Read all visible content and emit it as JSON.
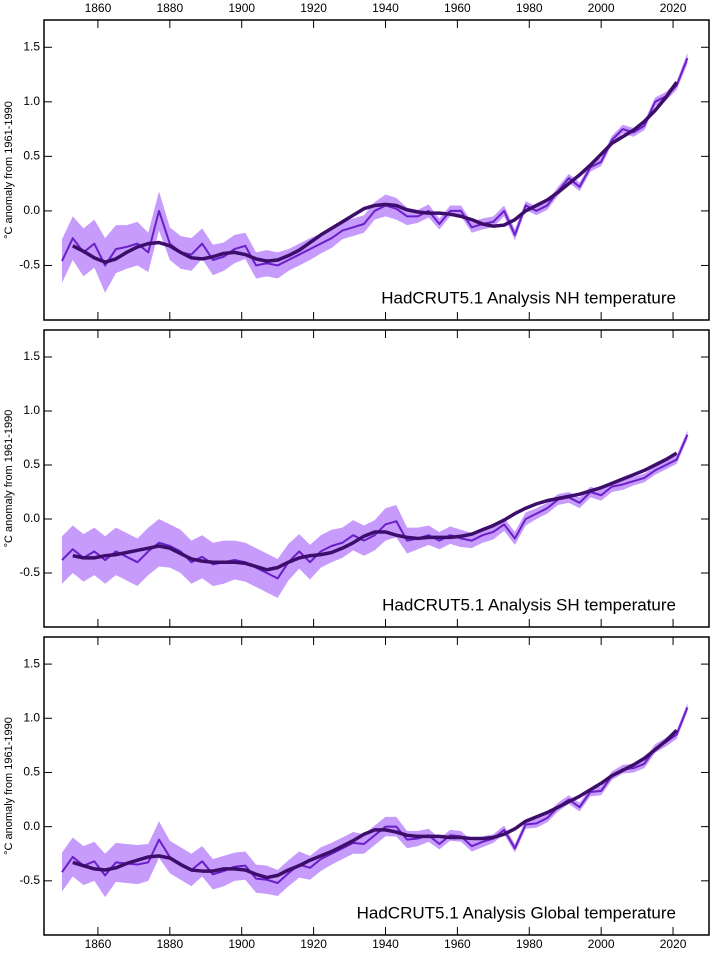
{
  "chart_data": [
    {
      "type": "line",
      "title": "HadCRUT5.1 Analysis NH temperature",
      "y_label": "°C anomaly from 1961-1990",
      "x": [
        1850,
        1853,
        1856,
        1859,
        1862,
        1865,
        1868,
        1871,
        1874,
        1877,
        1880,
        1883,
        1886,
        1889,
        1892,
        1895,
        1898,
        1901,
        1904,
        1907,
        1910,
        1913,
        1916,
        1919,
        1922,
        1925,
        1928,
        1931,
        1934,
        1937,
        1940,
        1943,
        1946,
        1949,
        1952,
        1955,
        1958,
        1961,
        1964,
        1967,
        1970,
        1973,
        1976,
        1979,
        1982,
        1985,
        1988,
        1991,
        1994,
        1997,
        2000,
        2003,
        2006,
        2009,
        2012,
        2015,
        2018,
        2021,
        2024
      ],
      "xlim": [
        1845,
        2030
      ],
      "xticks": [
        1860,
        1880,
        1900,
        1920,
        1940,
        1960,
        1980,
        2000,
        2020
      ],
      "ylim": [
        -1,
        1.75
      ],
      "yticks": [
        -0.5,
        {
          "value": 0,
          "label": "0.0"
        },
        0.5,
        {
          "value": 1,
          "label": "1.0"
        },
        1.5
      ],
      "series": [
        {
          "color": "#6a1fc9",
          "band_color": "#c79bfb",
          "values": [
            -0.46,
            -0.25,
            -0.38,
            -0.3,
            -0.5,
            -0.35,
            -0.33,
            -0.3,
            -0.38,
            0.0,
            -0.3,
            -0.38,
            -0.4,
            -0.3,
            -0.45,
            -0.42,
            -0.35,
            -0.32,
            -0.5,
            -0.48,
            -0.5,
            -0.45,
            -0.4,
            -0.35,
            -0.3,
            -0.25,
            -0.18,
            -0.15,
            -0.12,
            0.0,
            0.05,
            0.02,
            -0.05,
            -0.05,
            0.0,
            -0.12,
            0.0,
            0.0,
            -0.15,
            -0.12,
            -0.1,
            0.0,
            -0.22,
            0.05,
            0.0,
            0.05,
            0.18,
            0.3,
            0.22,
            0.4,
            0.45,
            0.65,
            0.75,
            0.72,
            0.78,
            1.0,
            1.05,
            1.15,
            1.4
          ],
          "errors": [
            0.2,
            0.2,
            0.22,
            0.22,
            0.25,
            0.22,
            0.2,
            0.2,
            0.18,
            0.18,
            0.15,
            0.15,
            0.15,
            0.14,
            0.14,
            0.13,
            0.13,
            0.12,
            0.12,
            0.12,
            0.12,
            0.1,
            0.1,
            0.1,
            0.09,
            0.09,
            0.08,
            0.08,
            0.08,
            0.08,
            0.1,
            0.1,
            0.08,
            0.06,
            0.06,
            0.05,
            0.05,
            0.05,
            0.05,
            0.05,
            0.05,
            0.05,
            0.05,
            0.04,
            0.04,
            0.04,
            0.04,
            0.04,
            0.04,
            0.04,
            0.04,
            0.04,
            0.04,
            0.04,
            0.04,
            0.04,
            0.04,
            0.04,
            0.05
          ]
        },
        {
          "color": "#3d0d6b",
          "values": [
            null,
            -0.32,
            -0.37,
            -0.43,
            -0.47,
            -0.44,
            -0.38,
            -0.33,
            -0.3,
            -0.29,
            -0.32,
            -0.38,
            -0.43,
            -0.44,
            -0.42,
            -0.39,
            -0.38,
            -0.4,
            -0.44,
            -0.46,
            -0.45,
            -0.41,
            -0.36,
            -0.29,
            -0.22,
            -0.16,
            -0.1,
            -0.04,
            0.02,
            0.05,
            0.06,
            0.05,
            0.01,
            -0.01,
            -0.02,
            -0.02,
            -0.03,
            -0.05,
            -0.08,
            -0.12,
            -0.14,
            -0.13,
            -0.08,
            0.0,
            0.05,
            0.1,
            0.17,
            0.25,
            0.33,
            0.42,
            0.52,
            0.62,
            0.68,
            0.74,
            0.82,
            0.92,
            1.04,
            1.18,
            null
          ]
        }
      ]
    },
    {
      "type": "line",
      "title": "HadCRUT5.1 Analysis SH temperature",
      "y_label": "°C anomaly from 1961-1990",
      "x": [
        1850,
        1853,
        1856,
        1859,
        1862,
        1865,
        1868,
        1871,
        1874,
        1877,
        1880,
        1883,
        1886,
        1889,
        1892,
        1895,
        1898,
        1901,
        1904,
        1907,
        1910,
        1913,
        1916,
        1919,
        1922,
        1925,
        1928,
        1931,
        1934,
        1937,
        1940,
        1943,
        1946,
        1949,
        1952,
        1955,
        1958,
        1961,
        1964,
        1967,
        1970,
        1973,
        1976,
        1979,
        1982,
        1985,
        1988,
        1991,
        1994,
        1997,
        2000,
        2003,
        2006,
        2009,
        2012,
        2015,
        2018,
        2021,
        2024
      ],
      "xlim": [
        1845,
        2030
      ],
      "xticks": [
        1860,
        1880,
        1900,
        1920,
        1940,
        1960,
        1980,
        2000,
        2020
      ],
      "ylim": [
        -1,
        1.75
      ],
      "yticks": [
        -0.5,
        {
          "value": 0,
          "label": "0.0"
        },
        0.5,
        {
          "value": 1,
          "label": "1.0"
        },
        1.5
      ],
      "series": [
        {
          "color": "#6a1fc9",
          "band_color": "#c79bfb",
          "values": [
            -0.38,
            -0.28,
            -0.36,
            -0.3,
            -0.38,
            -0.3,
            -0.35,
            -0.4,
            -0.3,
            -0.22,
            -0.25,
            -0.3,
            -0.4,
            -0.35,
            -0.42,
            -0.4,
            -0.38,
            -0.4,
            -0.45,
            -0.5,
            -0.55,
            -0.4,
            -0.3,
            -0.4,
            -0.3,
            -0.25,
            -0.22,
            -0.15,
            -0.2,
            -0.15,
            -0.05,
            -0.02,
            -0.2,
            -0.18,
            -0.15,
            -0.2,
            -0.15,
            -0.18,
            -0.2,
            -0.15,
            -0.12,
            -0.05,
            -0.18,
            0.0,
            0.05,
            0.1,
            0.18,
            0.2,
            0.15,
            0.25,
            0.22,
            0.3,
            0.32,
            0.35,
            0.38,
            0.45,
            0.5,
            0.55,
            0.78
          ],
          "errors": [
            0.22,
            0.22,
            0.22,
            0.22,
            0.22,
            0.22,
            0.22,
            0.22,
            0.22,
            0.22,
            0.2,
            0.2,
            0.2,
            0.2,
            0.2,
            0.2,
            0.18,
            0.18,
            0.18,
            0.18,
            0.18,
            0.17,
            0.16,
            0.16,
            0.15,
            0.15,
            0.14,
            0.14,
            0.14,
            0.14,
            0.15,
            0.15,
            0.12,
            0.1,
            0.09,
            0.08,
            0.08,
            0.08,
            0.07,
            0.07,
            0.07,
            0.06,
            0.06,
            0.06,
            0.05,
            0.05,
            0.05,
            0.05,
            0.05,
            0.05,
            0.05,
            0.05,
            0.05,
            0.04,
            0.04,
            0.04,
            0.04,
            0.04,
            0.04
          ]
        },
        {
          "color": "#3d0d6b",
          "values": [
            null,
            -0.34,
            -0.36,
            -0.36,
            -0.34,
            -0.33,
            -0.31,
            -0.29,
            -0.27,
            -0.25,
            -0.27,
            -0.32,
            -0.37,
            -0.39,
            -0.4,
            -0.4,
            -0.4,
            -0.41,
            -0.44,
            -0.47,
            -0.45,
            -0.4,
            -0.36,
            -0.34,
            -0.33,
            -0.31,
            -0.27,
            -0.22,
            -0.16,
            -0.12,
            -0.12,
            -0.15,
            -0.17,
            -0.18,
            -0.17,
            -0.17,
            -0.17,
            -0.16,
            -0.14,
            -0.1,
            -0.06,
            -0.01,
            0.05,
            0.1,
            0.14,
            0.17,
            0.19,
            0.21,
            0.23,
            0.26,
            0.29,
            0.33,
            0.37,
            0.41,
            0.45,
            0.5,
            0.55,
            0.61,
            null
          ]
        }
      ]
    },
    {
      "type": "line",
      "title": "HadCRUT5.1 Analysis Global temperature",
      "y_label": "°C anomaly from 1961-1990",
      "x": [
        1850,
        1853,
        1856,
        1859,
        1862,
        1865,
        1868,
        1871,
        1874,
        1877,
        1880,
        1883,
        1886,
        1889,
        1892,
        1895,
        1898,
        1901,
        1904,
        1907,
        1910,
        1913,
        1916,
        1919,
        1922,
        1925,
        1928,
        1931,
        1934,
        1937,
        1940,
        1943,
        1946,
        1949,
        1952,
        1955,
        1958,
        1961,
        1964,
        1967,
        1970,
        1973,
        1976,
        1979,
        1982,
        1985,
        1988,
        1991,
        1994,
        1997,
        2000,
        2003,
        2006,
        2009,
        2012,
        2015,
        2018,
        2021,
        2024
      ],
      "xlim": [
        1845,
        2030
      ],
      "xticks": [
        1860,
        1880,
        1900,
        1920,
        1940,
        1960,
        1980,
        2000,
        2020
      ],
      "ylim": [
        -1,
        1.75
      ],
      "yticks": [
        -0.5,
        {
          "value": 0,
          "label": "0.0"
        },
        0.5,
        {
          "value": 1,
          "label": "1.0"
        },
        1.5
      ],
      "series": [
        {
          "color": "#6a1fc9",
          "band_color": "#c79bfb",
          "values": [
            -0.42,
            -0.28,
            -0.36,
            -0.32,
            -0.45,
            -0.33,
            -0.34,
            -0.35,
            -0.33,
            -0.12,
            -0.28,
            -0.34,
            -0.4,
            -0.32,
            -0.44,
            -0.41,
            -0.37,
            -0.36,
            -0.48,
            -0.49,
            -0.52,
            -0.43,
            -0.35,
            -0.38,
            -0.3,
            -0.25,
            -0.2,
            -0.15,
            -0.16,
            -0.08,
            0.0,
            0.0,
            -0.12,
            -0.11,
            -0.08,
            -0.16,
            -0.08,
            -0.09,
            -0.18,
            -0.14,
            -0.11,
            -0.03,
            -0.2,
            0.02,
            0.03,
            0.08,
            0.18,
            0.25,
            0.18,
            0.32,
            0.33,
            0.47,
            0.53,
            0.54,
            0.58,
            0.72,
            0.78,
            0.85,
            1.1
          ],
          "errors": [
            0.18,
            0.18,
            0.18,
            0.18,
            0.2,
            0.18,
            0.18,
            0.18,
            0.17,
            0.17,
            0.15,
            0.15,
            0.15,
            0.14,
            0.14,
            0.14,
            0.13,
            0.13,
            0.13,
            0.13,
            0.12,
            0.12,
            0.12,
            0.11,
            0.11,
            0.1,
            0.1,
            0.1,
            0.09,
            0.09,
            0.09,
            0.09,
            0.08,
            0.07,
            0.06,
            0.05,
            0.05,
            0.05,
            0.05,
            0.05,
            0.04,
            0.04,
            0.04,
            0.04,
            0.04,
            0.04,
            0.04,
            0.04,
            0.04,
            0.04,
            0.04,
            0.04,
            0.04,
            0.04,
            0.04,
            0.04,
            0.04,
            0.04,
            0.04
          ]
        },
        {
          "color": "#3d0d6b",
          "values": [
            null,
            -0.33,
            -0.36,
            -0.39,
            -0.4,
            -0.38,
            -0.34,
            -0.31,
            -0.28,
            -0.27,
            -0.29,
            -0.35,
            -0.4,
            -0.41,
            -0.41,
            -0.39,
            -0.39,
            -0.4,
            -0.44,
            -0.47,
            -0.45,
            -0.4,
            -0.36,
            -0.31,
            -0.27,
            -0.23,
            -0.18,
            -0.13,
            -0.07,
            -0.03,
            -0.03,
            -0.05,
            -0.08,
            -0.09,
            -0.09,
            -0.09,
            -0.1,
            -0.1,
            -0.11,
            -0.11,
            -0.1,
            -0.07,
            -0.02,
            0.05,
            0.09,
            0.13,
            0.18,
            0.23,
            0.28,
            0.34,
            0.4,
            0.47,
            0.52,
            0.57,
            0.63,
            0.71,
            0.79,
            0.89,
            null
          ]
        }
      ]
    }
  ]
}
